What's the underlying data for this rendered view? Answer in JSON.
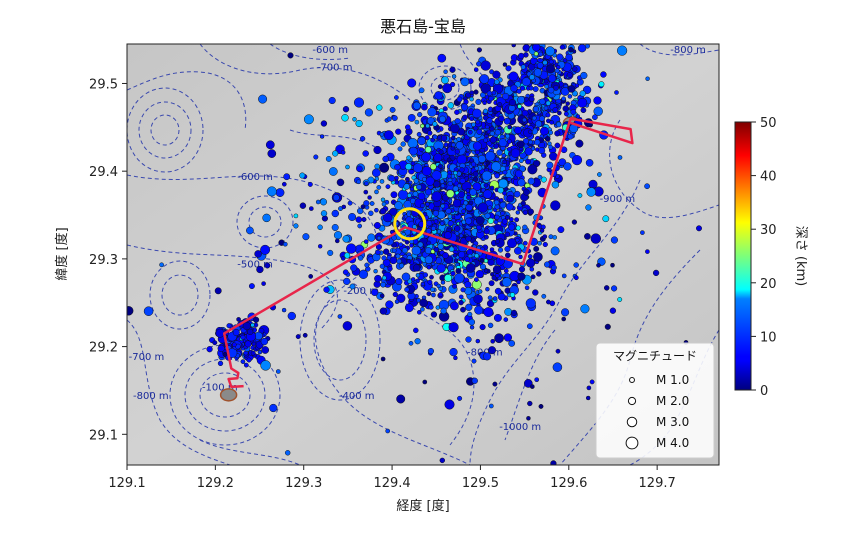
{
  "chart_data": {
    "type": "scatter",
    "title": "悪石島-宝島",
    "xlabel": "経度 [度]",
    "ylabel": "緯度 [度]",
    "xlim": [
      129.1,
      129.77
    ],
    "ylim": [
      29.065,
      29.545
    ],
    "xticks": [
      129.1,
      129.2,
      129.3,
      129.4,
      129.5,
      129.6,
      129.7
    ],
    "xtick_labels": [
      "129.1",
      "129.2",
      "129.3",
      "129.4",
      "129.5",
      "129.6",
      "129.7"
    ],
    "yticks": [
      29.1,
      29.2,
      29.3,
      29.4,
      29.5
    ],
    "ytick_labels": [
      "29.1",
      "29.2",
      "29.3",
      "29.4",
      "29.5"
    ],
    "colorbar": {
      "label": "深さ (km)",
      "range": [
        0,
        50
      ],
      "ticks": [
        0,
        10,
        20,
        30,
        40,
        50
      ],
      "tick_labels": [
        "0",
        "10",
        "20",
        "30",
        "40",
        "50"
      ],
      "colormap": "jet"
    },
    "legend": {
      "title": "マグニチュード",
      "placement": "bottom-right",
      "entries": [
        "M 1.0",
        "M 2.0",
        "M 3.0",
        "M 4.0"
      ],
      "magnitudes": [
        1.0,
        2.0,
        3.0,
        4.0
      ]
    },
    "grid": false,
    "background": "shaded bathymetry with dashed blue depth contours",
    "contour_labels": [
      {
        "text": "-600 m",
        "lon": 129.33,
        "lat": 29.535
      },
      {
        "text": "-700 m",
        "lon": 129.335,
        "lat": 29.515
      },
      {
        "text": "-800 m",
        "lon": 129.735,
        "lat": 29.535
      },
      {
        "text": "-600 m",
        "lon": 129.245,
        "lat": 29.39
      },
      {
        "text": "-500 m",
        "lon": 129.245,
        "lat": 29.29
      },
      {
        "text": "-200 m",
        "lon": 129.365,
        "lat": 29.26
      },
      {
        "text": "-400 m",
        "lon": 129.36,
        "lat": 29.14
      },
      {
        "text": "-900 m",
        "lon": 129.655,
        "lat": 29.365
      },
      {
        "text": "-800 m",
        "lon": 129.505,
        "lat": 29.19
      },
      {
        "text": "-1000 m",
        "lon": 129.545,
        "lat": 29.105
      },
      {
        "text": "-700 m",
        "lon": 129.122,
        "lat": 29.185
      },
      {
        "text": "-800 m",
        "lon": 129.127,
        "lat": 29.14
      },
      {
        "text": "-100 m",
        "lon": 129.205,
        "lat": 29.15
      }
    ],
    "survey_line": {
      "color": "#e8254a",
      "points": [
        [
          129.232,
          29.155
        ],
        [
          129.218,
          29.154
        ],
        [
          129.215,
          29.163
        ],
        [
          129.225,
          29.164
        ],
        [
          129.226,
          29.17
        ],
        [
          129.218,
          29.175
        ],
        [
          129.21,
          29.215
        ],
        [
          129.415,
          29.336
        ],
        [
          129.548,
          29.294
        ],
        [
          129.602,
          29.46
        ],
        [
          129.67,
          29.448
        ],
        [
          129.672,
          29.432
        ],
        [
          129.602,
          29.455
        ]
      ]
    },
    "highlight_circle": {
      "lon": 129.42,
      "lat": 29.34,
      "color": "#ffe014"
    },
    "islands": [
      {
        "name": "",
        "lon": 129.215,
        "lat": 29.145
      },
      {
        "name": "",
        "lon": 129.603,
        "lat": 29.455
      }
    ],
    "clusters": [
      {
        "lon": 129.482,
        "lat": 29.4,
        "sx": 0.04,
        "sy": 0.04,
        "n": 900,
        "depth_mean": 8,
        "depth_sd": 3
      },
      {
        "lon": 129.445,
        "lat": 29.345,
        "sx": 0.028,
        "sy": 0.028,
        "n": 420,
        "depth_mean": 9,
        "depth_sd": 3
      },
      {
        "lon": 129.548,
        "lat": 29.468,
        "sx": 0.04,
        "sy": 0.03,
        "n": 420,
        "depth_mean": 7,
        "depth_sd": 3
      },
      {
        "lon": 129.575,
        "lat": 29.515,
        "sx": 0.02,
        "sy": 0.02,
        "n": 160,
        "depth_mean": 7,
        "depth_sd": 3
      },
      {
        "lon": 129.5,
        "lat": 29.3,
        "sx": 0.045,
        "sy": 0.035,
        "n": 280,
        "depth_mean": 7,
        "depth_sd": 3
      },
      {
        "lon": 129.42,
        "lat": 29.29,
        "sx": 0.04,
        "sy": 0.03,
        "n": 130,
        "depth_mean": 8,
        "depth_sd": 3
      },
      {
        "lon": 129.23,
        "lat": 29.205,
        "sx": 0.014,
        "sy": 0.012,
        "n": 160,
        "depth_mean": 6,
        "depth_sd": 2
      },
      {
        "lon": 129.49,
        "lat": 29.3,
        "sx": 0.13,
        "sy": 0.1,
        "n": 220,
        "depth_mean": 6,
        "depth_sd": 4
      },
      {
        "lon": 129.36,
        "lat": 29.36,
        "sx": 0.05,
        "sy": 0.04,
        "n": 70,
        "depth_mean": 9,
        "depth_sd": 4
      }
    ]
  }
}
